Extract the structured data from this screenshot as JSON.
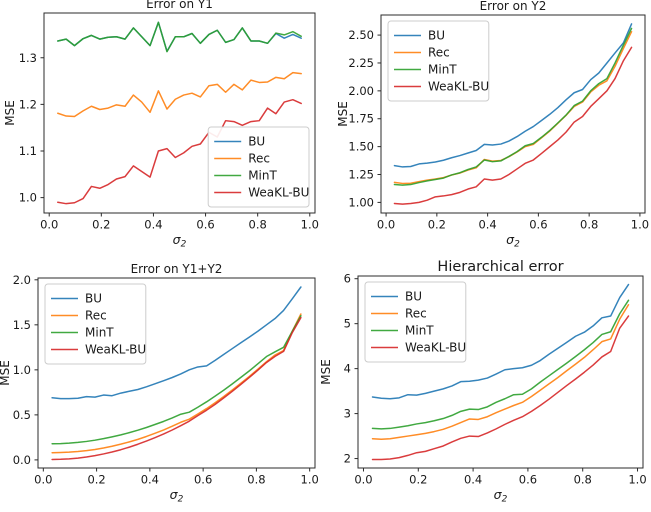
{
  "figure": {
    "kind": "matplotlib-style 2x2 subplot grid",
    "background": "#ffffff"
  },
  "colors": {
    "BU": "#1f77b4",
    "Rec": "#ff7f0e",
    "MinT": "#2ca02c",
    "WeaKL-BU": "#d62728",
    "spine": "#2b2b2b",
    "legend_border": "#cccccc",
    "legend_fill": "#ffffff"
  },
  "legend_labels": [
    "BU",
    "Rec",
    "MinT",
    "WeaKL-BU"
  ],
  "chart_data": [
    {
      "type": "line",
      "title": "Error on Y1",
      "title_size": 12,
      "xlabel": {
        "base": "σ",
        "sub": "2"
      },
      "ylabel": "MSE",
      "xlim": [
        -0.02,
        1.02
      ],
      "ylim": [
        0.967,
        1.396
      ],
      "xticks": [
        0.0,
        0.2,
        0.4,
        0.6,
        0.8,
        1.0
      ],
      "xtick_labels": [
        "0.0",
        "0.2",
        "0.4",
        "0.6",
        "0.8",
        "1.0"
      ],
      "yticks": [
        1.0,
        1.1,
        1.2,
        1.3
      ],
      "ytick_labels": [
        "1.0",
        "1.1",
        "1.2",
        "1.3"
      ],
      "grid": false,
      "legend_pos": "lower right",
      "x": [
        0.033,
        0.065,
        0.097,
        0.13,
        0.162,
        0.194,
        0.226,
        0.258,
        0.291,
        0.323,
        0.355,
        0.387,
        0.419,
        0.452,
        0.484,
        0.516,
        0.548,
        0.58,
        0.613,
        0.645,
        0.677,
        0.709,
        0.741,
        0.774,
        0.806,
        0.838,
        0.87,
        0.902,
        0.935,
        0.967
      ],
      "series": [
        {
          "name": "BU",
          "values": [
            1.336,
            1.34,
            1.326,
            1.341,
            1.348,
            1.34,
            1.344,
            1.345,
            1.34,
            1.364,
            1.345,
            1.326,
            1.376,
            1.314,
            1.345,
            1.345,
            1.352,
            1.331,
            1.35,
            1.359,
            1.333,
            1.339,
            1.364,
            1.336,
            1.336,
            1.331,
            1.352,
            1.342,
            1.35,
            1.342
          ]
        },
        {
          "name": "Rec",
          "values": [
            1.181,
            1.175,
            1.174,
            1.186,
            1.196,
            1.189,
            1.192,
            1.199,
            1.196,
            1.22,
            1.205,
            1.183,
            1.229,
            1.19,
            1.211,
            1.22,
            1.224,
            1.216,
            1.24,
            1.243,
            1.226,
            1.243,
            1.231,
            1.252,
            1.247,
            1.248,
            1.258,
            1.255,
            1.268,
            1.266
          ]
        },
        {
          "name": "MinT",
          "values": [
            1.336,
            1.34,
            1.326,
            1.341,
            1.348,
            1.34,
            1.344,
            1.345,
            1.34,
            1.364,
            1.345,
            1.326,
            1.376,
            1.313,
            1.345,
            1.345,
            1.352,
            1.331,
            1.35,
            1.359,
            1.333,
            1.339,
            1.364,
            1.336,
            1.336,
            1.331,
            1.353,
            1.349,
            1.356,
            1.346
          ]
        },
        {
          "name": "WeaKL-BU",
          "values": [
            0.99,
            0.987,
            0.989,
            0.998,
            1.024,
            1.02,
            1.028,
            1.04,
            1.045,
            1.068,
            1.056,
            1.044,
            1.1,
            1.105,
            1.086,
            1.096,
            1.11,
            1.115,
            1.14,
            1.13,
            1.165,
            1.163,
            1.155,
            1.163,
            1.165,
            1.192,
            1.18,
            1.205,
            1.21,
            1.202
          ]
        }
      ]
    },
    {
      "type": "line",
      "title": "Error on Y2",
      "title_size": 12,
      "xlabel": {
        "base": "σ",
        "sub": "2"
      },
      "ylabel": "MSE",
      "xlim": [
        -0.02,
        1.02
      ],
      "ylim": [
        0.905,
        2.68
      ],
      "xticks": [
        0.0,
        0.2,
        0.4,
        0.6,
        0.8,
        1.0
      ],
      "xtick_labels": [
        "0.0",
        "0.2",
        "0.4",
        "0.6",
        "0.8",
        "1.0"
      ],
      "yticks": [
        1.0,
        1.25,
        1.5,
        1.75,
        2.0,
        2.25,
        2.5
      ],
      "ytick_labels": [
        "1.00",
        "1.25",
        "1.50",
        "1.75",
        "2.00",
        "2.25",
        "2.50"
      ],
      "grid": false,
      "legend_pos": "upper left",
      "x": [
        0.033,
        0.065,
        0.097,
        0.13,
        0.162,
        0.194,
        0.226,
        0.258,
        0.291,
        0.323,
        0.355,
        0.387,
        0.419,
        0.452,
        0.484,
        0.516,
        0.548,
        0.58,
        0.613,
        0.645,
        0.677,
        0.709,
        0.741,
        0.774,
        0.806,
        0.838,
        0.87,
        0.902,
        0.935,
        0.967
      ],
      "series": [
        {
          "name": "BU",
          "values": [
            1.33,
            1.318,
            1.322,
            1.345,
            1.352,
            1.362,
            1.378,
            1.4,
            1.42,
            1.443,
            1.465,
            1.52,
            1.515,
            1.523,
            1.55,
            1.59,
            1.638,
            1.68,
            1.735,
            1.79,
            1.85,
            1.92,
            1.983,
            2.012,
            2.1,
            2.16,
            2.25,
            2.34,
            2.43,
            2.6
          ]
        },
        {
          "name": "Rec",
          "values": [
            1.18,
            1.17,
            1.172,
            1.186,
            1.2,
            1.21,
            1.222,
            1.245,
            1.263,
            1.29,
            1.31,
            1.385,
            1.37,
            1.376,
            1.41,
            1.452,
            1.5,
            1.52,
            1.58,
            1.64,
            1.71,
            1.78,
            1.86,
            1.9,
            1.99,
            2.05,
            2.09,
            2.22,
            2.38,
            2.53
          ]
        },
        {
          "name": "MinT",
          "values": [
            1.16,
            1.155,
            1.16,
            1.178,
            1.193,
            1.205,
            1.218,
            1.246,
            1.266,
            1.295,
            1.318,
            1.38,
            1.365,
            1.372,
            1.412,
            1.455,
            1.508,
            1.528,
            1.585,
            1.645,
            1.713,
            1.783,
            1.868,
            1.908,
            2.0,
            2.065,
            2.11,
            2.25,
            2.41,
            2.56
          ]
        },
        {
          "name": "WeaKL-BU",
          "values": [
            0.99,
            0.985,
            0.99,
            1.0,
            1.02,
            1.05,
            1.058,
            1.07,
            1.09,
            1.12,
            1.14,
            1.21,
            1.2,
            1.21,
            1.25,
            1.3,
            1.35,
            1.38,
            1.44,
            1.5,
            1.56,
            1.63,
            1.72,
            1.77,
            1.86,
            1.93,
            2.0,
            2.11,
            2.27,
            2.39
          ]
        }
      ]
    },
    {
      "type": "line",
      "title": "Error on Y1+Y2",
      "title_size": 12,
      "xlabel": {
        "base": "σ",
        "sub": "2"
      },
      "ylabel": "MSE",
      "xlim": [
        -0.02,
        1.02
      ],
      "ylim": [
        -0.09,
        2.02
      ],
      "xticks": [
        0.0,
        0.2,
        0.4,
        0.6,
        0.8,
        1.0
      ],
      "xtick_labels": [
        "0.0",
        "0.2",
        "0.4",
        "0.6",
        "0.8",
        "1.0"
      ],
      "yticks": [
        0.0,
        0.5,
        1.0,
        1.5,
        2.0
      ],
      "ytick_labels": [
        "0.0",
        "0.5",
        "1.0",
        "1.5",
        "2.0"
      ],
      "grid": false,
      "legend_pos": "upper left",
      "x": [
        0.033,
        0.065,
        0.097,
        0.13,
        0.162,
        0.194,
        0.226,
        0.258,
        0.291,
        0.323,
        0.355,
        0.387,
        0.419,
        0.452,
        0.484,
        0.516,
        0.548,
        0.58,
        0.613,
        0.645,
        0.677,
        0.709,
        0.741,
        0.774,
        0.806,
        0.838,
        0.87,
        0.902,
        0.935,
        0.967
      ],
      "series": [
        {
          "name": "BU",
          "values": [
            0.69,
            0.681,
            0.68,
            0.685,
            0.703,
            0.697,
            0.72,
            0.713,
            0.742,
            0.762,
            0.782,
            0.812,
            0.845,
            0.88,
            0.915,
            0.955,
            1.0,
            1.032,
            1.044,
            1.105,
            1.17,
            1.235,
            1.3,
            1.365,
            1.43,
            1.5,
            1.57,
            1.66,
            1.79,
            1.92
          ]
        },
        {
          "name": "Rec",
          "values": [
            0.08,
            0.082,
            0.086,
            0.093,
            0.103,
            0.116,
            0.132,
            0.152,
            0.175,
            0.2,
            0.228,
            0.26,
            0.295,
            0.333,
            0.374,
            0.418,
            0.452,
            0.51,
            0.57,
            0.635,
            0.703,
            0.775,
            0.85,
            0.928,
            1.008,
            1.09,
            1.165,
            1.215,
            1.43,
            1.62
          ]
        },
        {
          "name": "MinT",
          "values": [
            0.18,
            0.181,
            0.186,
            0.194,
            0.205,
            0.219,
            0.236,
            0.256,
            0.278,
            0.303,
            0.33,
            0.36,
            0.393,
            0.428,
            0.466,
            0.507,
            0.53,
            0.585,
            0.645,
            0.708,
            0.773,
            0.843,
            0.915,
            0.99,
            1.068,
            1.148,
            1.2,
            1.25,
            1.43,
            1.6
          ]
        },
        {
          "name": "WeaKL-BU",
          "values": [
            0.005,
            0.007,
            0.012,
            0.02,
            0.032,
            0.047,
            0.066,
            0.088,
            0.113,
            0.142,
            0.174,
            0.209,
            0.247,
            0.288,
            0.332,
            0.38,
            0.43,
            0.492,
            0.552,
            0.617,
            0.687,
            0.76,
            0.837,
            0.917,
            0.998,
            1.082,
            1.15,
            1.205,
            1.415,
            1.58
          ]
        }
      ]
    },
    {
      "type": "line",
      "title": "Hierarchical error",
      "title_size": 14.5,
      "xlabel": {
        "base": "σ",
        "sub": "2"
      },
      "ylabel": "MSE",
      "xlim": [
        -0.02,
        1.02
      ],
      "ylim": [
        1.79,
        6.06
      ],
      "xticks": [
        0.0,
        0.2,
        0.4,
        0.6,
        0.8,
        1.0
      ],
      "xtick_labels": [
        "0.0",
        "0.2",
        "0.4",
        "0.6",
        "0.8",
        "1.0"
      ],
      "yticks": [
        2,
        3,
        4,
        5,
        6
      ],
      "ytick_labels": [
        "2",
        "3",
        "4",
        "5",
        "6"
      ],
      "grid": false,
      "legend_pos": "upper left",
      "x": [
        0.033,
        0.065,
        0.097,
        0.13,
        0.162,
        0.194,
        0.226,
        0.258,
        0.291,
        0.323,
        0.355,
        0.387,
        0.419,
        0.452,
        0.484,
        0.516,
        0.548,
        0.58,
        0.613,
        0.645,
        0.677,
        0.709,
        0.741,
        0.774,
        0.806,
        0.838,
        0.87,
        0.902,
        0.935,
        0.967
      ],
      "series": [
        {
          "name": "BU",
          "values": [
            3.37,
            3.34,
            3.33,
            3.35,
            3.42,
            3.41,
            3.45,
            3.5,
            3.55,
            3.615,
            3.71,
            3.72,
            3.745,
            3.79,
            3.88,
            3.975,
            4.0,
            4.02,
            4.075,
            4.18,
            4.32,
            4.45,
            4.58,
            4.72,
            4.81,
            4.95,
            5.13,
            5.17,
            5.58,
            5.87
          ]
        },
        {
          "name": "Rec",
          "values": [
            2.44,
            2.43,
            2.44,
            2.47,
            2.5,
            2.53,
            2.56,
            2.6,
            2.65,
            2.72,
            2.8,
            2.88,
            2.87,
            2.93,
            3.02,
            3.1,
            3.18,
            3.25,
            3.38,
            3.52,
            3.66,
            3.8,
            3.95,
            4.1,
            4.25,
            4.42,
            4.6,
            4.66,
            5.1,
            5.42
          ]
        },
        {
          "name": "MinT",
          "values": [
            2.67,
            2.66,
            2.67,
            2.7,
            2.73,
            2.77,
            2.8,
            2.84,
            2.89,
            2.96,
            3.05,
            3.1,
            3.09,
            3.15,
            3.25,
            3.33,
            3.42,
            3.43,
            3.55,
            3.7,
            3.84,
            3.98,
            4.12,
            4.27,
            4.42,
            4.58,
            4.76,
            4.82,
            5.22,
            5.52
          ]
        },
        {
          "name": "WeaKL-BU",
          "values": [
            1.98,
            1.98,
            1.99,
            2.02,
            2.07,
            2.13,
            2.16,
            2.22,
            2.28,
            2.37,
            2.45,
            2.5,
            2.49,
            2.57,
            2.66,
            2.76,
            2.85,
            2.93,
            3.05,
            3.18,
            3.32,
            3.47,
            3.62,
            3.77,
            3.92,
            4.08,
            4.26,
            4.38,
            4.9,
            5.17
          ]
        }
      ]
    }
  ]
}
